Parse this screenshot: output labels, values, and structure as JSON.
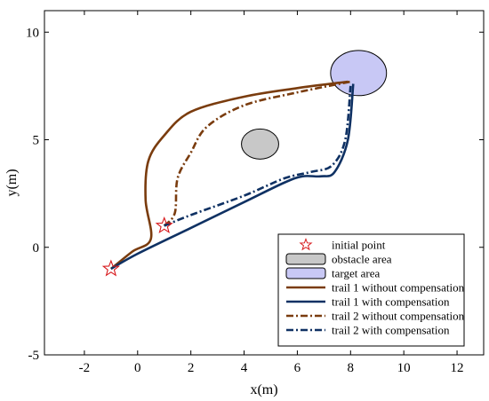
{
  "chart_data": {
    "type": "line",
    "xlabel": "x(m)",
    "ylabel": "y(m)",
    "xlim": [
      -3.5,
      13
    ],
    "ylim": [
      -5,
      11
    ],
    "xticks": [
      -2,
      0,
      2,
      4,
      6,
      8,
      10,
      12
    ],
    "yticks": [
      -5,
      0,
      5,
      10
    ],
    "tick_labels_x": [
      "-2",
      "0",
      "2",
      "4",
      "6",
      "8",
      "10",
      "12"
    ],
    "tick_labels_y": [
      "-5",
      "0",
      "5",
      "10"
    ],
    "grid": false,
    "legend_position": "bottom-right",
    "initial_points": {
      "name": "initial point",
      "color": "#d7191c",
      "points": [
        [
          -1.0,
          -1.0
        ],
        [
          1.0,
          1.0
        ]
      ]
    },
    "obstacle": {
      "name": "obstacle area",
      "color": "#c8c8c8",
      "center": [
        4.6,
        4.8
      ],
      "radius": [
        0.7,
        0.7
      ]
    },
    "target": {
      "name": "target area",
      "color": "#c8c8f5",
      "center": [
        8.3,
        8.1
      ],
      "radius": [
        1.05,
        1.05
      ]
    },
    "series": [
      {
        "name": "trail 1 without compensation",
        "color": "#7a3c0e",
        "style": "solid",
        "points": [
          [
            -1.0,
            -1.0
          ],
          [
            -0.2,
            -0.2
          ],
          [
            0.5,
            0.4
          ],
          [
            0.3,
            2.2
          ],
          [
            0.4,
            4.0
          ],
          [
            1.0,
            5.2
          ],
          [
            2.0,
            6.3
          ],
          [
            4.0,
            7.0
          ],
          [
            6.0,
            7.4
          ],
          [
            7.9,
            7.7
          ]
        ]
      },
      {
        "name": "trail 1 with compensation",
        "color": "#0f3163",
        "style": "solid",
        "points": [
          [
            -1.0,
            -1.0
          ],
          [
            0.0,
            -0.3
          ],
          [
            2.0,
            0.9
          ],
          [
            4.0,
            2.1
          ],
          [
            5.5,
            3.0
          ],
          [
            6.2,
            3.3
          ],
          [
            6.9,
            3.3
          ],
          [
            7.4,
            3.5
          ],
          [
            7.9,
            5.0
          ],
          [
            8.1,
            7.6
          ]
        ]
      },
      {
        "name": "trail 2 without compensation",
        "color": "#7a3c0e",
        "style": "dashdot",
        "points": [
          [
            1.0,
            1.0
          ],
          [
            1.4,
            1.6
          ],
          [
            1.5,
            3.2
          ],
          [
            2.0,
            4.4
          ],
          [
            2.6,
            5.6
          ],
          [
            4.0,
            6.6
          ],
          [
            6.0,
            7.2
          ],
          [
            8.0,
            7.7
          ]
        ]
      },
      {
        "name": "trail 2 with compensation",
        "color": "#0f3163",
        "style": "dashdot",
        "points": [
          [
            1.0,
            1.0
          ],
          [
            2.0,
            1.5
          ],
          [
            4.0,
            2.4
          ],
          [
            5.5,
            3.2
          ],
          [
            6.5,
            3.5
          ],
          [
            7.3,
            3.8
          ],
          [
            7.8,
            5.0
          ],
          [
            8.0,
            7.5
          ]
        ]
      }
    ]
  }
}
